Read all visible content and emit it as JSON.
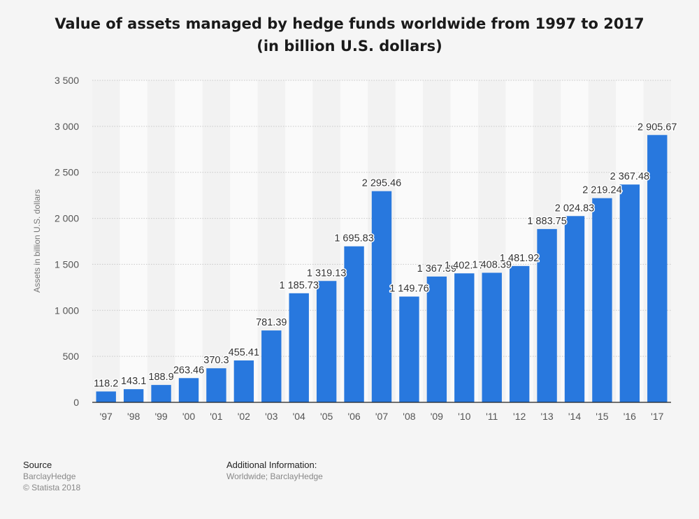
{
  "chart_data": {
    "type": "bar",
    "title": "Value of assets managed by hedge funds worldwide from 1997 to 2017 (in billion U.S. dollars)",
    "xlabel": "",
    "ylabel": "Assets in billion U.S. dollars",
    "ylim": [
      0,
      3500
    ],
    "yticks": [
      0,
      500,
      1000,
      1500,
      2000,
      2500,
      3000,
      3500
    ],
    "ytick_labels": [
      "0",
      "500",
      "1 000",
      "1 500",
      "2 000",
      "2 500",
      "3 000",
      "3 500"
    ],
    "categories": [
      "'97",
      "'98",
      "'99",
      "'00",
      "'01",
      "'02",
      "'03",
      "'04",
      "'05",
      "'06",
      "'07",
      "'08",
      "'09",
      "'10",
      "'11",
      "'12",
      "'13",
      "'14",
      "'15",
      "'16",
      "'17"
    ],
    "values": [
      118.2,
      143.1,
      188.9,
      263.46,
      370.3,
      455.41,
      781.39,
      1185.73,
      1319.13,
      1695.83,
      2295.46,
      1149.76,
      1367.39,
      1402.17,
      1408.39,
      1481.92,
      1883.75,
      2024.83,
      2219.24,
      2367.48,
      2905.67
    ],
    "value_labels": [
      "118.2",
      "143.1",
      "188.9",
      "263.46",
      "370.3",
      "455.41",
      "781.39",
      "1 185.73",
      "1 319.13",
      "1 695.83",
      "2 295.46",
      "1 149.76",
      "1 367.39",
      "1 402.17",
      "1 408.39",
      "1 481.92",
      "1 883.75",
      "2 024.83",
      "2 219.24",
      "2 367.48",
      "2 905.67"
    ],
    "bar_color": "#2878de",
    "grid": true
  },
  "footer": {
    "source_heading": "Source",
    "source_line1": "BarclayHedge",
    "source_line2": "© Statista 2018",
    "additional_heading": "Additional Information:",
    "additional_text": "Worldwide; BarclayHedge"
  }
}
